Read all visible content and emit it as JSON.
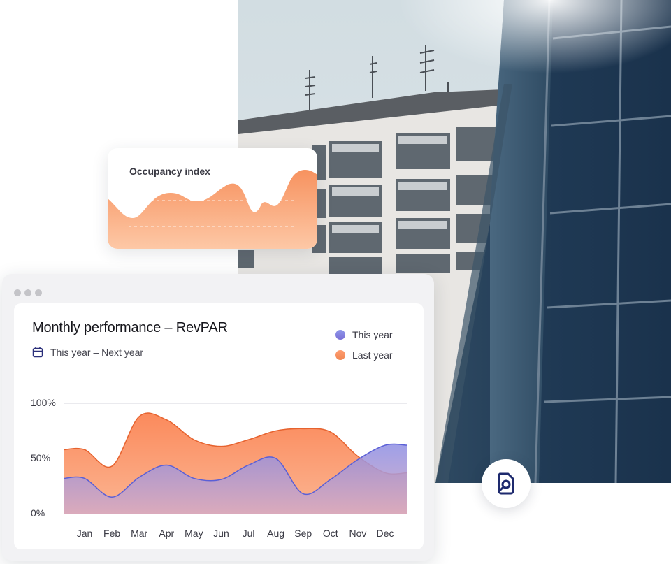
{
  "photo": {
    "subject": "hotel-building-photo"
  },
  "occupancy_card": {
    "title": "Occupancy index"
  },
  "window": {
    "dots": 3
  },
  "panel": {
    "title": "Monthly performance – RevPAR",
    "date_range": "This year – Next year",
    "legend": [
      {
        "label": "This year",
        "color": "#8a8fe6"
      },
      {
        "label": "Last year",
        "color": "#f7925f"
      }
    ]
  },
  "chart_data": {
    "type": "area",
    "categories": [
      "Jan",
      "Feb",
      "Mar",
      "Apr",
      "May",
      "Jun",
      "Jul",
      "Aug",
      "Sep",
      "Oct",
      "Nov",
      "Dec"
    ],
    "y_ticks": [
      "100%",
      "50%",
      "0%"
    ],
    "ylim": [
      0,
      100
    ],
    "grid": "top-line",
    "legend_placement": "top-right",
    "series": [
      {
        "name": "This year",
        "color": "#8a8fe6",
        "values": [
          32,
          15,
          33,
          44,
          32,
          31,
          44,
          50,
          18,
          31,
          49,
          62
        ]
      },
      {
        "name": "Last year",
        "color": "#f7925f",
        "values": [
          58,
          43,
          88,
          85,
          67,
          61,
          67,
          75,
          77,
          74,
          52,
          37
        ]
      }
    ]
  },
  "badge": {
    "icon": "document-search-icon"
  }
}
